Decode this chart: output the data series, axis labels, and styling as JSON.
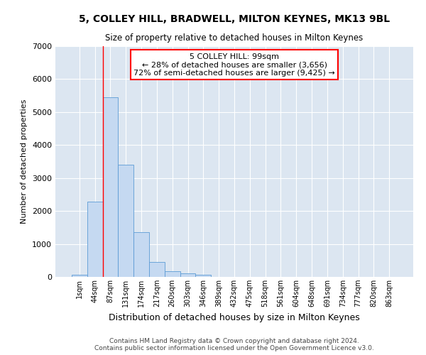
{
  "title": "5, COLLEY HILL, BRADWELL, MILTON KEYNES, MK13 9BL",
  "subtitle": "Size of property relative to detached houses in Milton Keynes",
  "xlabel": "Distribution of detached houses by size in Milton Keynes",
  "ylabel": "Number of detached properties",
  "footer_line1": "Contains HM Land Registry data © Crown copyright and database right 2024.",
  "footer_line2": "Contains public sector information licensed under the Open Government Licence v3.0.",
  "bar_labels": [
    "1sqm",
    "44sqm",
    "87sqm",
    "131sqm",
    "174sqm",
    "217sqm",
    "260sqm",
    "303sqm",
    "346sqm",
    "389sqm",
    "432sqm",
    "475sqm",
    "518sqm",
    "561sqm",
    "604sqm",
    "648sqm",
    "691sqm",
    "734sqm",
    "777sqm",
    "820sqm",
    "863sqm"
  ],
  "bar_values": [
    60,
    2280,
    5450,
    3400,
    1350,
    450,
    170,
    110,
    60,
    0,
    0,
    0,
    0,
    0,
    0,
    0,
    0,
    0,
    0,
    0,
    0
  ],
  "bar_color": "#c5d9f1",
  "bar_edge_color": "#5b9bd5",
  "grid_color": "#dce6f1",
  "background_color": "#dce6f1",
  "ylim": [
    0,
    7000
  ],
  "yticks": [
    0,
    1000,
    2000,
    3000,
    4000,
    5000,
    6000,
    7000
  ],
  "property_name": "5 COLLEY HILL: 99sqm",
  "pct_smaller": 28,
  "n_smaller": 3656,
  "pct_larger_semi": 72,
  "n_larger_semi": 9425,
  "vline_x": 1.5
}
